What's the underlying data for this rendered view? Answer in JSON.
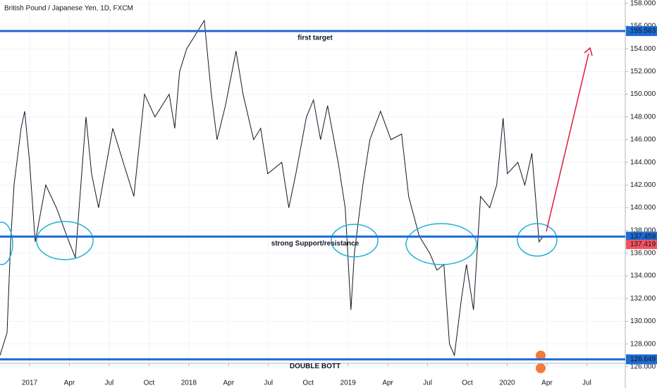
{
  "chart_data": {
    "type": "line",
    "title": "British Pound / Japanese Yen, 1D, FXCM",
    "color": "#131722",
    "x": [
      -2.23,
      -1.7,
      -1.43,
      -1.17,
      -0.64,
      -0.37,
      0,
      0.42,
      1.22,
      2.02,
      2.97,
      3.45,
      4.25,
      4.67,
      5.2,
      6.27,
      7.06,
      7.86,
      8.66,
      9.45,
      10.52,
      10.94,
      11.31,
      11.84,
      13.17,
      13.7,
      14.13,
      14.76,
      15.56,
      16.09,
      16.89,
      17.42,
      17.95,
      19.01,
      19.54,
      20.07,
      20.87,
      21.4,
      21.93,
      22.46,
      23.26,
      23.79,
      24.22,
      24.48,
      25.12,
      25.65,
      26.45,
      27.24,
      28.04,
      28.57,
      29.37,
      30.16,
      30.7,
      31.23,
      31.65,
      32.02,
      32.55,
      32.93,
      33.46,
      33.78,
      33.99,
      34.68,
      35.21,
      35.69,
      36.01,
      36.8,
      37.33,
      37.86,
      38.13,
      38.4,
      38.66
    ],
    "values": [
      127,
      129,
      137,
      142,
      147,
      148.5,
      144,
      137,
      142,
      140,
      137,
      135.6,
      148,
      143,
      140,
      147,
      144,
      141,
      150,
      148,
      150,
      147,
      152,
      154,
      156.5,
      150,
      146,
      149,
      153.8,
      150,
      146,
      147,
      143,
      144,
      140,
      143,
      148,
      149.5,
      146,
      149,
      144,
      140,
      131,
      136,
      142,
      146,
      148.5,
      146,
      146.5,
      141,
      137.5,
      136,
      134.5,
      135,
      128,
      127,
      132,
      135,
      131,
      137,
      141,
      140,
      142,
      147.9,
      143,
      144,
      142,
      144.8,
      141,
      137,
      137.4
    ],
    "xlim": [
      -2.23,
      44.9
    ],
    "ylim": [
      126.3,
      158.3
    ],
    "xticks": [
      {
        "value": 0,
        "label": "2017"
      },
      {
        "value": 3,
        "label": "Apr"
      },
      {
        "value": 6,
        "label": "Jul"
      },
      {
        "value": 9,
        "label": "Oct"
      },
      {
        "value": 12,
        "label": "2018"
      },
      {
        "value": 15,
        "label": "Apr"
      },
      {
        "value": 18,
        "label": "Jul"
      },
      {
        "value": 21,
        "label": "Oct"
      },
      {
        "value": 24,
        "label": "2019"
      },
      {
        "value": 27,
        "label": "Apr"
      },
      {
        "value": 30,
        "label": "Jul"
      },
      {
        "value": 33,
        "label": "Oct"
      },
      {
        "value": 36,
        "label": "2020"
      },
      {
        "value": 39,
        "label": "Apr"
      },
      {
        "value": 42,
        "label": "Jul"
      }
    ],
    "yticks": [
      {
        "value": 126,
        "label": "126.000"
      },
      {
        "value": 128,
        "label": "128.000"
      },
      {
        "value": 130,
        "label": "130.000"
      },
      {
        "value": 132,
        "label": "132.000"
      },
      {
        "value": 134,
        "label": "134.000"
      },
      {
        "value": 136,
        "label": "136.000"
      },
      {
        "value": 138,
        "label": "138.000"
      },
      {
        "value": 140,
        "label": "140.000"
      },
      {
        "value": 142,
        "label": "142.000"
      },
      {
        "value": 144,
        "label": "144.000"
      },
      {
        "value": 146,
        "label": "146.000"
      },
      {
        "value": 148,
        "label": "148.000"
      },
      {
        "value": 150,
        "label": "150.000"
      },
      {
        "value": 152,
        "label": "152.000"
      },
      {
        "value": 154,
        "label": "154.000"
      },
      {
        "value": 156,
        "label": "156.000"
      },
      {
        "value": 158,
        "label": "158.000"
      }
    ],
    "grid": true,
    "levels": [
      {
        "value": 155.563,
        "text": "first target",
        "color": "#1e6bd1"
      },
      {
        "value": 137.459,
        "text": "strong Support/resistance",
        "color": "#1e6bd1"
      },
      {
        "value": 126.649,
        "text": "DOUBLE BOTT",
        "color": "#1e6bd1"
      }
    ],
    "last_price": 137.419,
    "last_price_color": "#f7525f",
    "annotation_color": "#e0193a"
  }
}
